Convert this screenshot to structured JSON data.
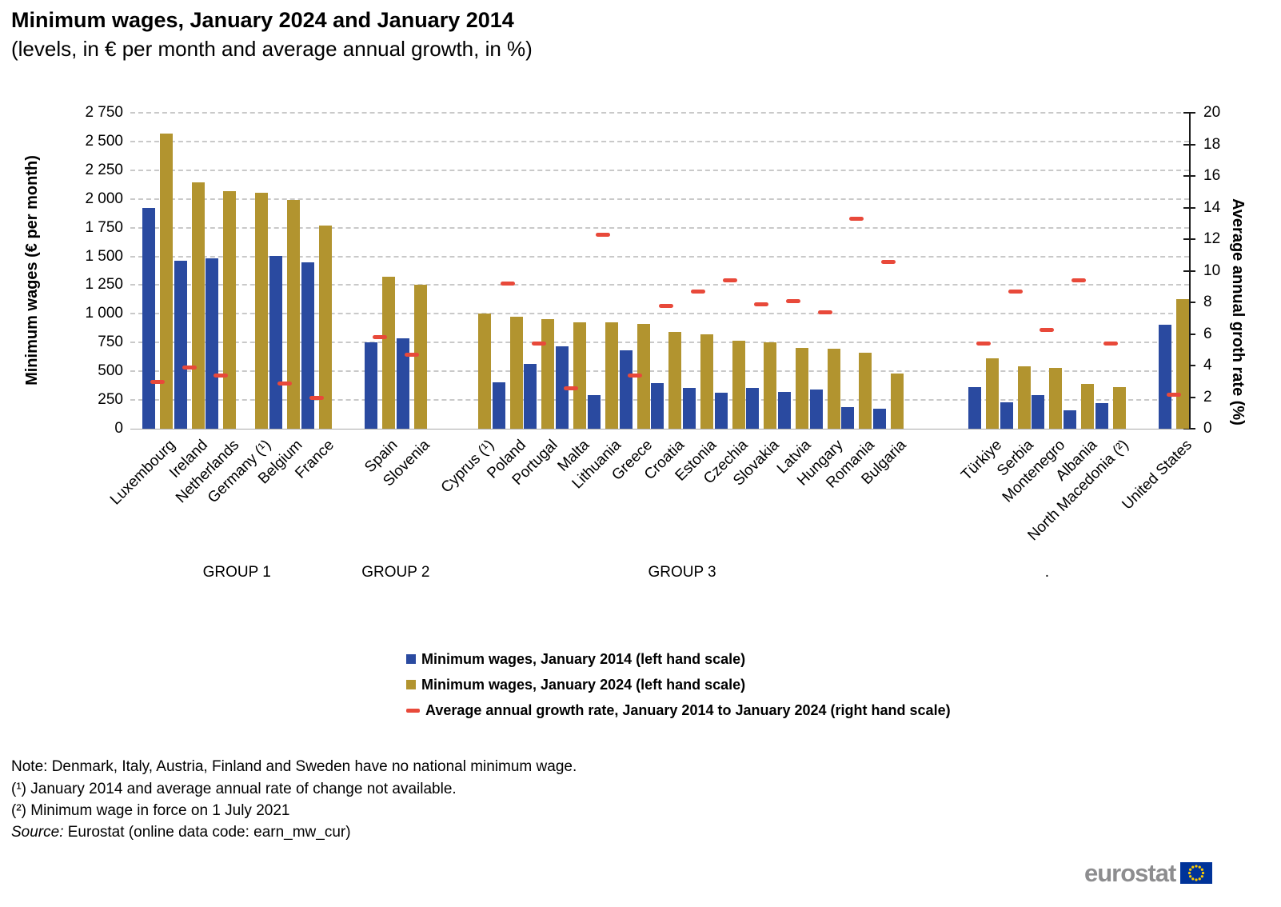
{
  "title": "Minimum wages, January 2024 and January 2014",
  "subtitle": "(levels, in € per month and average annual growth, in %)",
  "chart_data": {
    "type": "bar",
    "left_axis": {
      "title": "Minimum wages (€ per month)",
      "min": 0,
      "max": 2750,
      "step": 250,
      "tick_labels": [
        "0",
        "250",
        "500",
        "750",
        "1 000",
        "1 250",
        "1 500",
        "1 750",
        "2 000",
        "2 250",
        "2 500",
        "2 750"
      ]
    },
    "right_axis": {
      "title": "Average annual groth rate (%)",
      "min": 0,
      "max": 20,
      "step": 2,
      "tick_labels": [
        "0",
        "2",
        "4",
        "6",
        "8",
        "10",
        "12",
        "14",
        "16",
        "18",
        "20"
      ]
    },
    "series": [
      {
        "name": "Minimum wages, January 2014 (left hand scale)",
        "color": "#2A4AA0",
        "marker": "square"
      },
      {
        "name": "Minimum wages, January 2024 (left hand scale)",
        "color": "#B2942F",
        "marker": "square"
      },
      {
        "name": "Average annual growth rate, January 2014 to January 2024 (right hand scale)",
        "color": "#E8493A",
        "marker": "dash"
      }
    ],
    "groups": [
      {
        "label": "GROUP 1",
        "countries": [
          {
            "name": "Luxembourg",
            "wage2014": 1921,
            "wage2024": 2571,
            "growth": 3.0
          },
          {
            "name": "Ireland",
            "wage2014": 1462,
            "wage2024": 2146,
            "growth": 3.9
          },
          {
            "name": "Netherlands",
            "wage2014": 1486,
            "wage2024": 2070,
            "growth": 3.4
          },
          {
            "name": "Germany (¹)",
            "wage2014": null,
            "wage2024": 2054,
            "growth": null
          },
          {
            "name": "Belgium",
            "wage2014": 1502,
            "wage2024": 1994,
            "growth": 2.9
          },
          {
            "name": "France",
            "wage2014": 1445,
            "wage2024": 1767,
            "growth": 2.0
          }
        ]
      },
      {
        "label": "GROUP 2",
        "countries": [
          {
            "name": "Spain",
            "wage2014": 753,
            "wage2024": 1323,
            "growth": 5.8
          },
          {
            "name": "Slovenia",
            "wage2014": 789,
            "wage2024": 1254,
            "growth": 4.7
          }
        ]
      },
      {
        "label": "GROUP 3",
        "countries": [
          {
            "name": "Cyprus (¹)",
            "wage2014": null,
            "wage2024": 1000,
            "growth": null
          },
          {
            "name": "Poland",
            "wage2014": 404,
            "wage2024": 978,
            "growth": 9.2
          },
          {
            "name": "Portugal",
            "wage2014": 566,
            "wage2024": 957,
            "growth": 5.4
          },
          {
            "name": "Malta",
            "wage2014": 718,
            "wage2024": 925,
            "growth": 2.6
          },
          {
            "name": "Lithuania",
            "wage2014": 290,
            "wage2024": 924,
            "growth": 12.3
          },
          {
            "name": "Greece",
            "wage2014": 684,
            "wage2024": 910,
            "growth": 3.4
          },
          {
            "name": "Croatia",
            "wage2014": 398,
            "wage2024": 840,
            "growth": 7.8
          },
          {
            "name": "Estonia",
            "wage2014": 355,
            "wage2024": 820,
            "growth": 8.7
          },
          {
            "name": "Czechia",
            "wage2014": 310,
            "wage2024": 764,
            "growth": 9.4
          },
          {
            "name": "Slovakia",
            "wage2014": 352,
            "wage2024": 750,
            "growth": 7.9
          },
          {
            "name": "Latvia",
            "wage2014": 320,
            "wage2024": 700,
            "growth": 8.1
          },
          {
            "name": "Hungary",
            "wage2014": 342,
            "wage2024": 697,
            "growth": 7.4
          },
          {
            "name": "Romania",
            "wage2014": 190,
            "wage2024": 663,
            "growth": 13.3
          },
          {
            "name": "Bulgaria",
            "wage2014": 174,
            "wage2024": 477,
            "growth": 10.6
          }
        ]
      },
      {
        "label": ".",
        "countries": [
          {
            "name": "Türkiye",
            "wage2014": 362,
            "wage2024": 610,
            "growth": 5.4
          },
          {
            "name": "Serbia",
            "wage2014": 228,
            "wage2024": 541,
            "growth": 8.7
          },
          {
            "name": "Montenegro",
            "wage2014": 289,
            "wage2024": 532,
            "growth": 6.3
          },
          {
            "name": "Albania",
            "wage2014": 158,
            "wage2024": 387,
            "growth": 9.4
          },
          {
            "name": "North Macedonia (²)",
            "wage2014": 222,
            "wage2024": 360,
            "growth": 5.4
          }
        ]
      },
      {
        "label": "",
        "countries": [
          {
            "name": "United States",
            "wage2014": 905,
            "wage2024": 1130,
            "growth": 2.2
          }
        ]
      }
    ],
    "grid": {
      "color": "#c9c9c9",
      "style": "dashed"
    },
    "legend_position": "bottom-center"
  },
  "notes": {
    "line1": "Note: Denmark, Italy, Austria, Finland and Sweden have no national minimum wage.",
    "line2": "(¹) January 2014 and average annual rate of change not available.",
    "line3": "(²) Minimum wage in force on 1 July 2021",
    "source_label": "Source:",
    "source_text": " Eurostat (online data code: earn_mw_cur)"
  },
  "logo": {
    "text": "eurostat",
    "flag_blue": "#003399",
    "flag_stars": "#FFCC00"
  }
}
